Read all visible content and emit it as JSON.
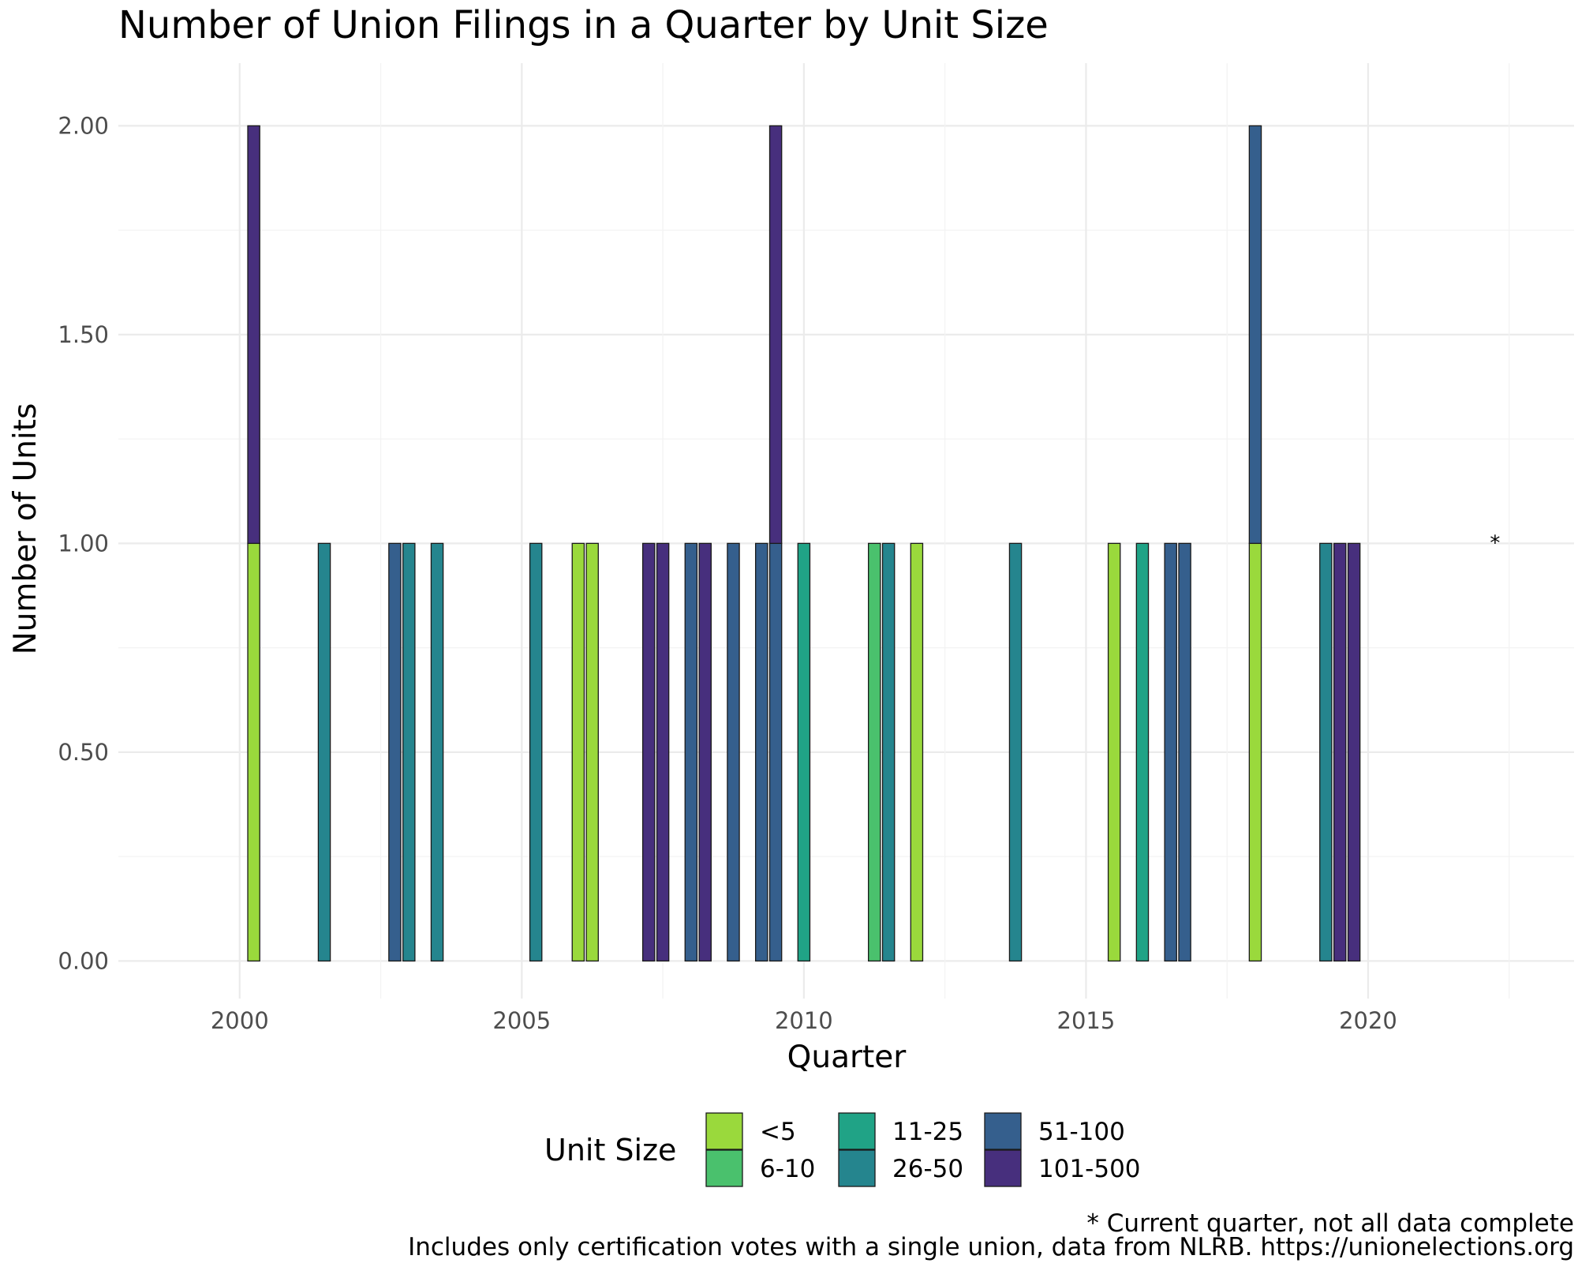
{
  "chart_data": {
    "type": "bar",
    "title": "Number of Union Filings in a Quarter by Unit Size",
    "xlabel": "Quarter",
    "ylabel": "Number of Units",
    "xlim": [
      1997.85,
      2023.65
    ],
    "ylim": [
      -0.09,
      2.15
    ],
    "x_ticks": [
      2000,
      2005,
      2010,
      2015,
      2020
    ],
    "x_tick_labels": [
      "2000",
      "2005",
      "2010",
      "2015",
      "2020"
    ],
    "y_ticks": [
      0,
      0.5,
      1,
      1.5,
      2
    ],
    "y_tick_labels": [
      "0.00",
      "0.50",
      "1.00",
      "1.50",
      "2.00"
    ],
    "grid": true,
    "legend_position": "bottom",
    "legend_title": "Unit Size",
    "categories": [
      {
        "name": "<5",
        "color": "#9ad93c"
      },
      {
        "name": "6-10",
        "color": "#4ac16d"
      },
      {
        "name": "11-25",
        "color": "#20a386"
      },
      {
        "name": "26-50",
        "color": "#25858e"
      },
      {
        "name": "51-100",
        "color": "#355f8d"
      },
      {
        "name": "101-500",
        "color": "#472f7d"
      }
    ],
    "bars": [
      {
        "quarter": 2000.25,
        "segments": [
          {
            "category": "<5",
            "value": 1
          },
          {
            "category": "101-500",
            "value": 1
          }
        ]
      },
      {
        "quarter": 2001.5,
        "segments": [
          {
            "category": "26-50",
            "value": 1
          }
        ]
      },
      {
        "quarter": 2002.75,
        "segments": [
          {
            "category": "51-100",
            "value": 1
          }
        ]
      },
      {
        "quarter": 2003.0,
        "segments": [
          {
            "category": "26-50",
            "value": 1
          }
        ]
      },
      {
        "quarter": 2003.5,
        "segments": [
          {
            "category": "26-50",
            "value": 1
          }
        ]
      },
      {
        "quarter": 2005.25,
        "segments": [
          {
            "category": "26-50",
            "value": 1
          }
        ]
      },
      {
        "quarter": 2006.0,
        "segments": [
          {
            "category": "<5",
            "value": 1
          }
        ]
      },
      {
        "quarter": 2006.25,
        "segments": [
          {
            "category": "<5",
            "value": 1
          }
        ]
      },
      {
        "quarter": 2007.25,
        "segments": [
          {
            "category": "101-500",
            "value": 1
          }
        ]
      },
      {
        "quarter": 2007.5,
        "segments": [
          {
            "category": "101-500",
            "value": 1
          }
        ]
      },
      {
        "quarter": 2008.0,
        "segments": [
          {
            "category": "51-100",
            "value": 1
          }
        ]
      },
      {
        "quarter": 2008.25,
        "segments": [
          {
            "category": "101-500",
            "value": 1
          }
        ]
      },
      {
        "quarter": 2008.75,
        "segments": [
          {
            "category": "51-100",
            "value": 1
          }
        ]
      },
      {
        "quarter": 2009.25,
        "segments": [
          {
            "category": "51-100",
            "value": 1
          }
        ]
      },
      {
        "quarter": 2009.5,
        "segments": [
          {
            "category": "51-100",
            "value": 1
          },
          {
            "category": "101-500",
            "value": 1
          }
        ]
      },
      {
        "quarter": 2010.0,
        "segments": [
          {
            "category": "11-25",
            "value": 1
          }
        ]
      },
      {
        "quarter": 2011.25,
        "segments": [
          {
            "category": "6-10",
            "value": 1
          }
        ]
      },
      {
        "quarter": 2011.5,
        "segments": [
          {
            "category": "26-50",
            "value": 1
          }
        ]
      },
      {
        "quarter": 2012.0,
        "segments": [
          {
            "category": "<5",
            "value": 1
          }
        ]
      },
      {
        "quarter": 2013.75,
        "segments": [
          {
            "category": "26-50",
            "value": 1
          }
        ]
      },
      {
        "quarter": 2015.5,
        "segments": [
          {
            "category": "<5",
            "value": 1
          }
        ]
      },
      {
        "quarter": 2016.0,
        "segments": [
          {
            "category": "11-25",
            "value": 1
          }
        ]
      },
      {
        "quarter": 2016.5,
        "segments": [
          {
            "category": "51-100",
            "value": 1
          }
        ]
      },
      {
        "quarter": 2016.75,
        "segments": [
          {
            "category": "51-100",
            "value": 1
          }
        ]
      },
      {
        "quarter": 2018.0,
        "segments": [
          {
            "category": "<5",
            "value": 1
          },
          {
            "category": "51-100",
            "value": 1
          }
        ]
      },
      {
        "quarter": 2019.25,
        "segments": [
          {
            "category": "26-50",
            "value": 1
          }
        ]
      },
      {
        "quarter": 2019.5,
        "segments": [
          {
            "category": "101-500",
            "value": 1
          }
        ]
      },
      {
        "quarter": 2019.75,
        "segments": [
          {
            "category": "101-500",
            "value": 1
          }
        ]
      }
    ],
    "annotation": {
      "text": "*",
      "quarter": 2022.25,
      "value": 1.0
    },
    "caption_lines": [
      "* Current quarter, not all data complete",
      "Includes only certification votes with a single union, data from NLRB. https://unionelections.org"
    ]
  }
}
